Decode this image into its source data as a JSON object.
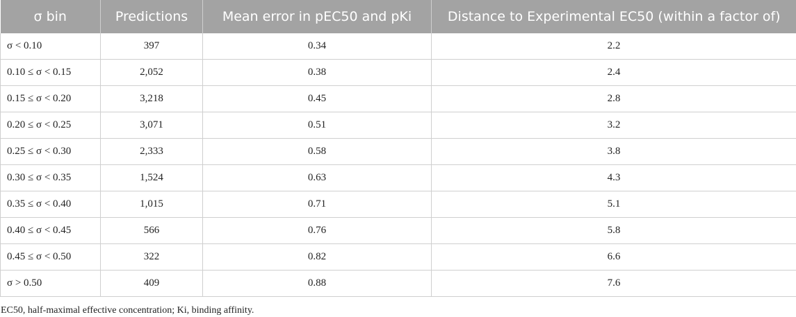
{
  "table": {
    "headers": [
      "σ bin",
      "Predictions",
      "Mean error in pEC50 and pKi",
      "Distance to Experimental EC50 (within a factor of)"
    ],
    "rows": [
      [
        "σ < 0.10",
        "397",
        "0.34",
        "2.2"
      ],
      [
        "0.10 ≤ σ < 0.15",
        "2,052",
        "0.38",
        "2.4"
      ],
      [
        "0.15 ≤ σ < 0.20",
        "3,218",
        "0.45",
        "2.8"
      ],
      [
        "0.20 ≤ σ < 0.25",
        "3,071",
        "0.51",
        "3.2"
      ],
      [
        "0.25 ≤ σ < 0.30",
        "2,333",
        "0.58",
        "3.8"
      ],
      [
        "0.30 ≤ σ < 0.35",
        "1,524",
        "0.63",
        "4.3"
      ],
      [
        "0.35 ≤ σ < 0.40",
        "1,015",
        "0.71",
        "5.1"
      ],
      [
        "0.40 ≤ σ < 0.45",
        "566",
        "0.76",
        "5.8"
      ],
      [
        "0.45 ≤ σ < 0.50",
        "322",
        "0.82",
        "6.6"
      ],
      [
        "σ > 0.50",
        "409",
        "0.88",
        "7.6"
      ]
    ]
  },
  "footnote": "EC50, half-maximal effective concentration; Ki, binding affinity."
}
